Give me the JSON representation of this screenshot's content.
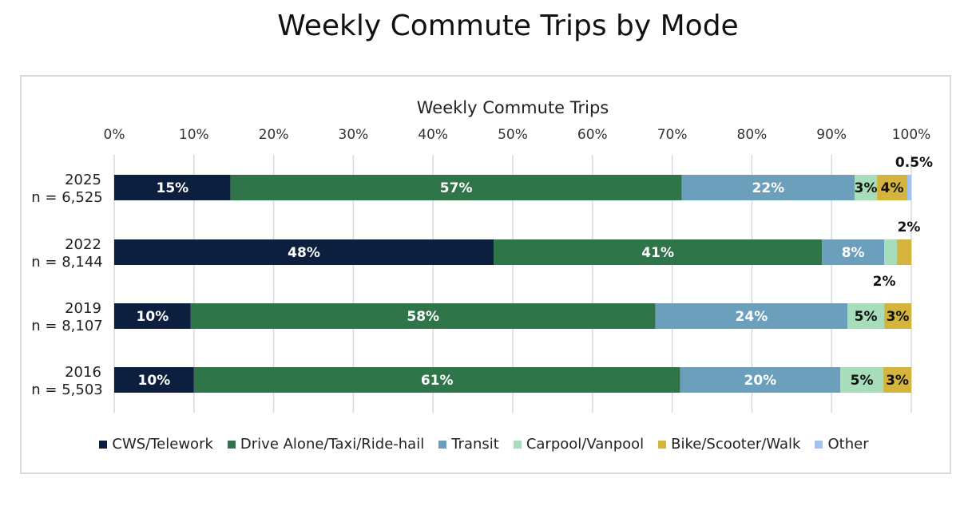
{
  "chart_data": {
    "type": "bar",
    "orientation": "horizontal",
    "stacked": true,
    "title": "Weekly Commute Trips by Mode",
    "xlabel": "Weekly Commute Trips",
    "xlim": [
      0,
      100
    ],
    "ticks": [
      "0%",
      "10%",
      "20%",
      "30%",
      "40%",
      "50%",
      "60%",
      "70%",
      "80%",
      "90%",
      "100%"
    ],
    "categories": [
      {
        "year": "2025",
        "n": "n = 6,525"
      },
      {
        "year": "2022",
        "n": "n = 8,144"
      },
      {
        "year": "2019",
        "n": "n = 8,107"
      },
      {
        "year": "2016",
        "n": "n = 5,503"
      }
    ],
    "series": [
      {
        "name": "CWS/Telework",
        "color": "#0c1f3f",
        "text_color": "#ffffff",
        "values": [
          14.6,
          47.6,
          9.6,
          10.0
        ],
        "labels": [
          "15%",
          "48%",
          "10%",
          "10%"
        ]
      },
      {
        "name": "Drive Alone/Taxi/Ride-hail",
        "color": "#2f7549",
        "text_color": "#ffffff",
        "values": [
          56.6,
          41.2,
          58.3,
          61.0
        ],
        "labels": [
          "57%",
          "41%",
          "58%",
          "61%"
        ]
      },
      {
        "name": "Transit",
        "color": "#6c9fbb",
        "text_color": "#ffffff",
        "values": [
          21.7,
          7.8,
          24.1,
          20.1
        ],
        "labels": [
          "22%",
          "8%",
          "24%",
          "20%"
        ]
      },
      {
        "name": "Carpool/Vanpool",
        "color": "#a8ddbb",
        "text_color": "#111111",
        "values": [
          2.8,
          1.6,
          4.6,
          5.4
        ],
        "labels": [
          "3%",
          "",
          "5%",
          "5%"
        ]
      },
      {
        "name": "Bike/Scooter/Walk",
        "color": "#d4b43c",
        "text_color": "#111111",
        "values": [
          3.8,
          1.8,
          3.4,
          3.5
        ],
        "labels": [
          "4%",
          "",
          "3%",
          "3%"
        ]
      },
      {
        "name": "Other",
        "color": "#a4c2f0",
        "text_color": "#111111",
        "values": [
          0.5,
          0,
          0,
          0
        ],
        "labels": [
          "",
          "",
          "",
          ""
        ]
      }
    ],
    "external_labels": [
      {
        "category_index": 0,
        "series": "Other",
        "text": "0.5%",
        "position": "above"
      },
      {
        "category_index": 1,
        "series": "Bike/Scooter/Walk",
        "text": "2%",
        "position": "above"
      },
      {
        "category_index": 1,
        "series": "Carpool/Vanpool",
        "text": "2%",
        "position": "below"
      }
    ],
    "legend_position": "bottom",
    "grid": true
  }
}
